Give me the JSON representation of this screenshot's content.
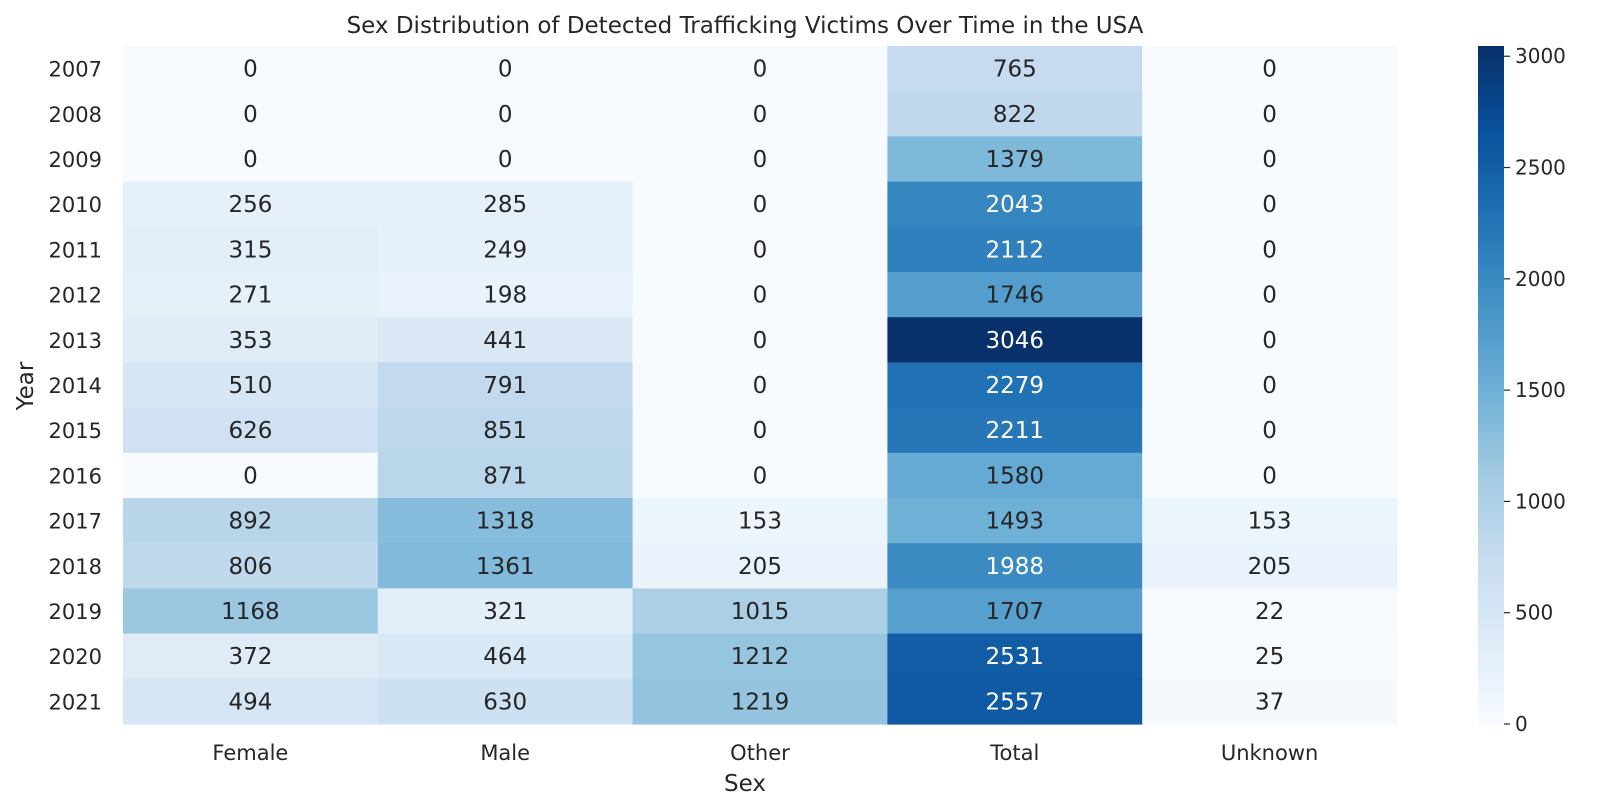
{
  "chart_data": {
    "type": "heatmap",
    "title": "Sex Distribution of Detected Trafficking Victims Over Time in the USA",
    "xlabel": "Sex",
    "ylabel": "Year",
    "x_categories": [
      "Female",
      "Male",
      "Other",
      "Total",
      "Unknown"
    ],
    "y_categories": [
      "2007",
      "2008",
      "2009",
      "2010",
      "2011",
      "2012",
      "2013",
      "2014",
      "2015",
      "2016",
      "2017",
      "2018",
      "2019",
      "2020",
      "2021"
    ],
    "values": [
      [
        0,
        0,
        0,
        765,
        0
      ],
      [
        0,
        0,
        0,
        822,
        0
      ],
      [
        0,
        0,
        0,
        1379,
        0
      ],
      [
        256,
        285,
        0,
        2043,
        0
      ],
      [
        315,
        249,
        0,
        2112,
        0
      ],
      [
        271,
        198,
        0,
        1746,
        0
      ],
      [
        353,
        441,
        0,
        3046,
        0
      ],
      [
        510,
        791,
        0,
        2279,
        0
      ],
      [
        626,
        851,
        0,
        2211,
        0
      ],
      [
        0,
        871,
        0,
        1580,
        0
      ],
      [
        892,
        1318,
        153,
        1493,
        153
      ],
      [
        806,
        1361,
        205,
        1988,
        205
      ],
      [
        1168,
        321,
        1015,
        1707,
        22
      ],
      [
        372,
        464,
        1212,
        2531,
        25
      ],
      [
        494,
        630,
        1219,
        2557,
        37
      ]
    ],
    "colormap": "Blues",
    "value_range": [
      0,
      3046
    ],
    "colorbar_ticks": [
      0,
      500,
      1000,
      1500,
      2000,
      2500,
      3000
    ],
    "annotations": true
  }
}
